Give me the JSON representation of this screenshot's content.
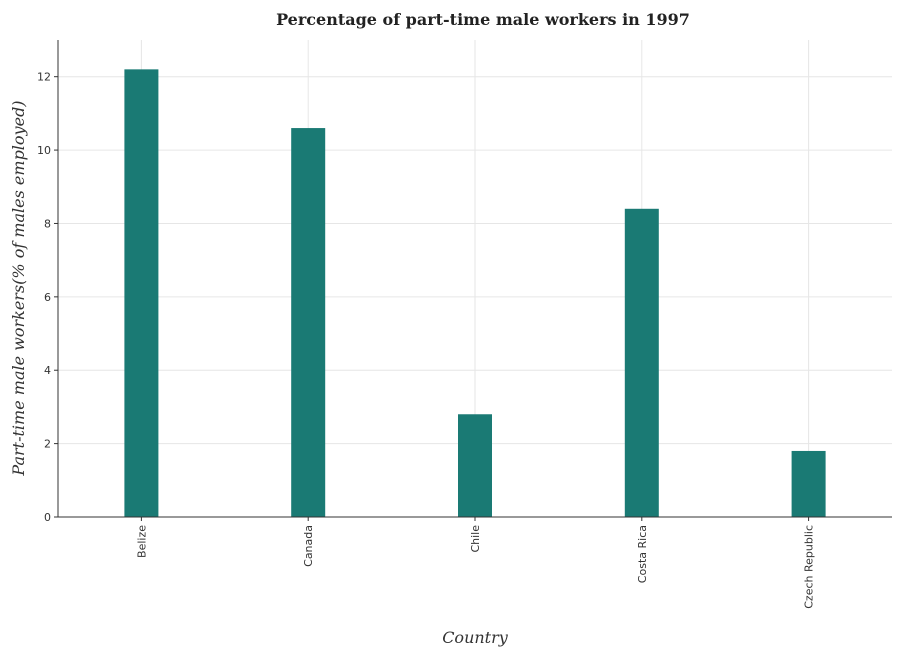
{
  "chart_data": {
    "type": "bar",
    "title": "Percentage of part-time male workers in 1997",
    "xlabel": "Country",
    "ylabel": "Part-time male workers(% of males employed)",
    "categories": [
      "Belize",
      "Canada",
      "Chile",
      "Costa Rica",
      "Czech Republic"
    ],
    "values": [
      12.2,
      10.6,
      2.8,
      8.4,
      1.8
    ],
    "ylim": [
      0,
      13
    ],
    "yticks": [
      0,
      2,
      4,
      6,
      8,
      10,
      12
    ],
    "grid": true,
    "colors": {
      "bar": "#1a7a74"
    }
  }
}
